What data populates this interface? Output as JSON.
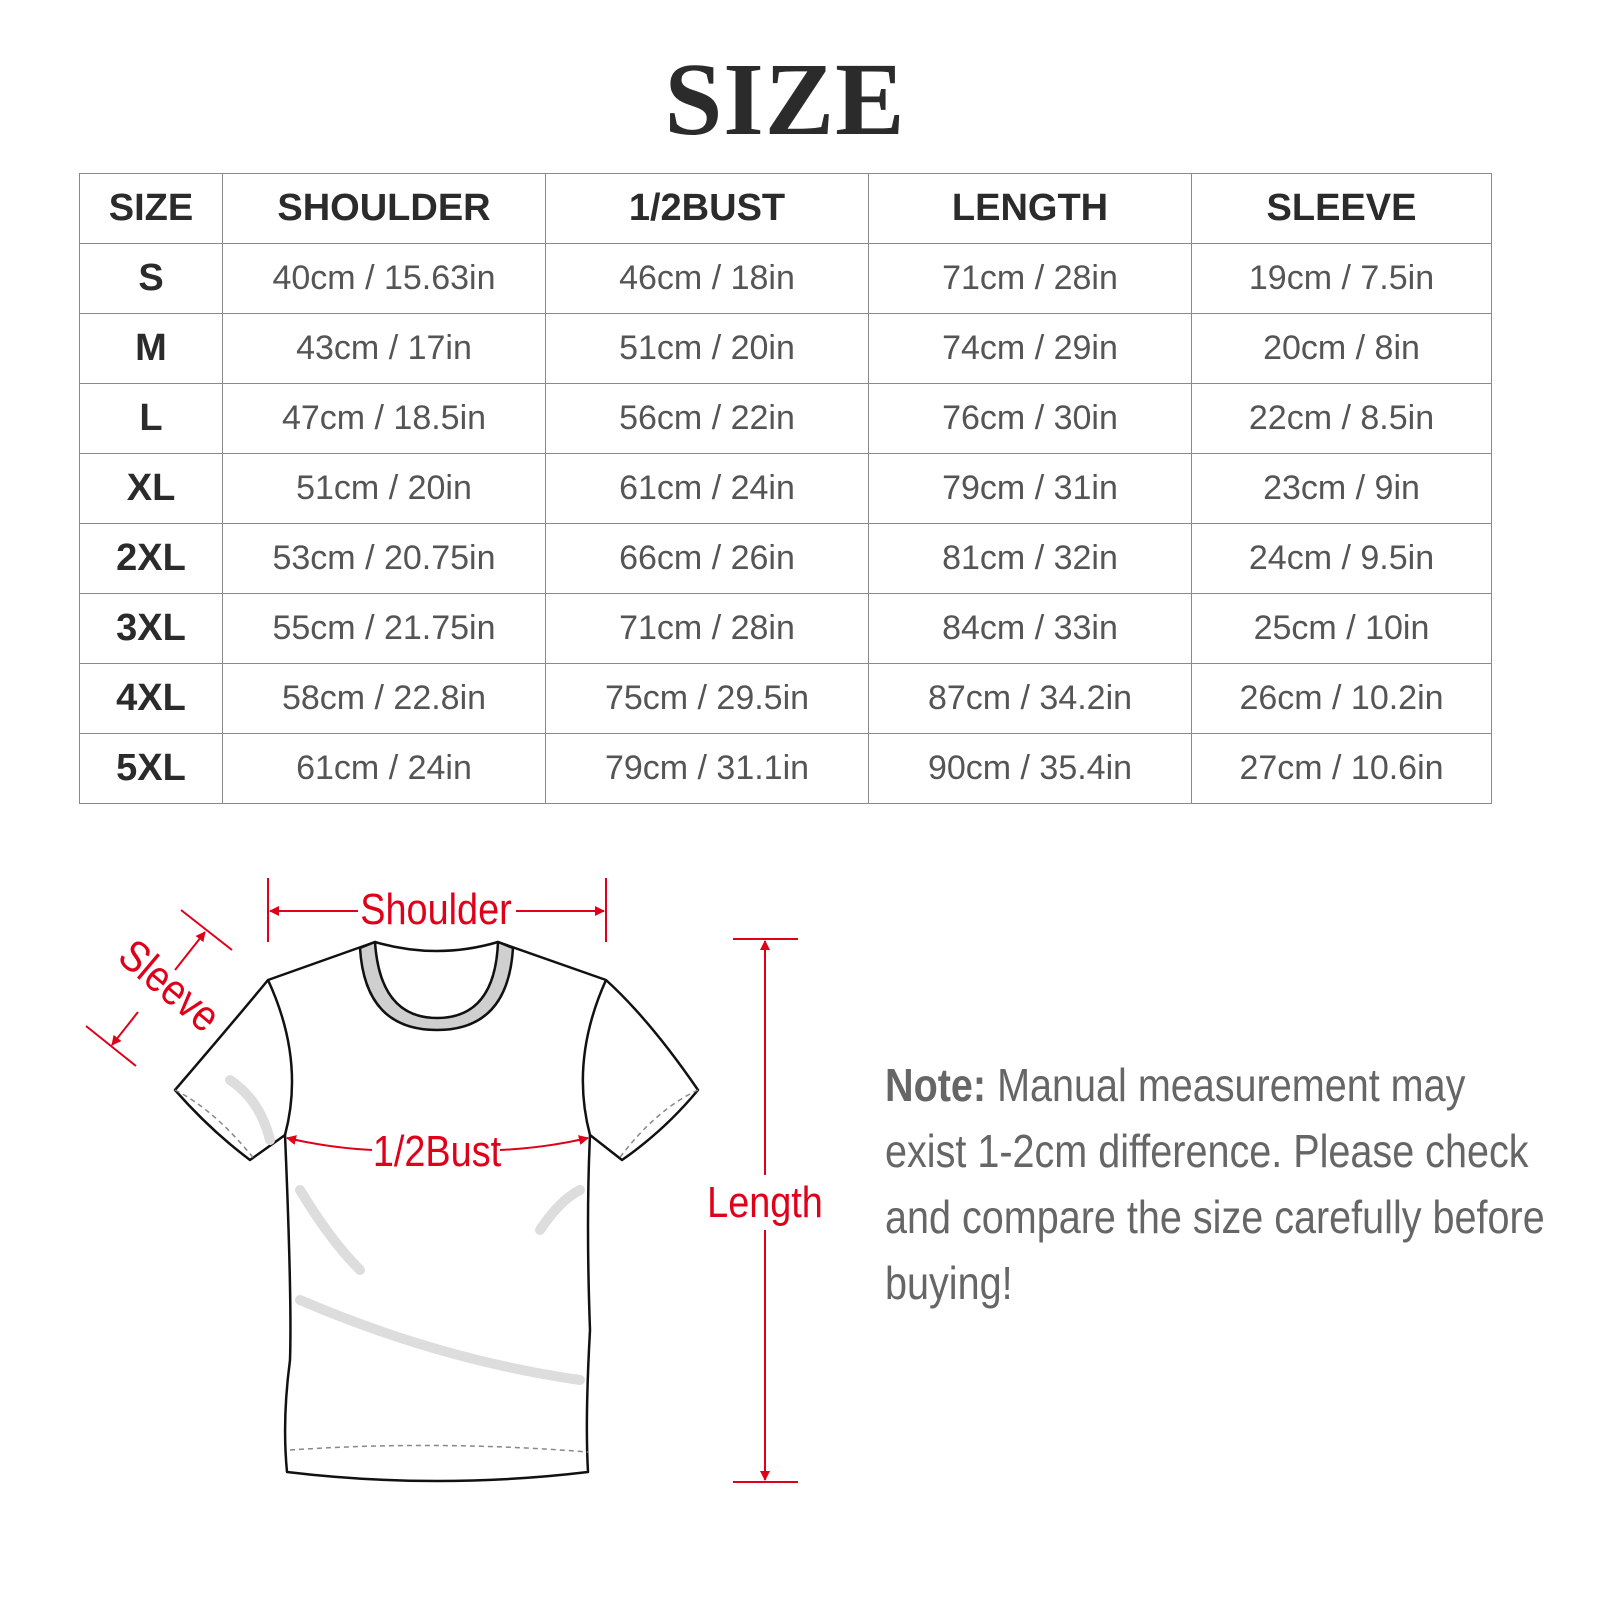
{
  "title": "SIZE",
  "table": {
    "headers": [
      "SIZE",
      "SHOULDER",
      "1/2BUST",
      "LENGTH",
      "SLEEVE"
    ],
    "rows": [
      [
        "S",
        "40cm / 15.63in",
        "46cm / 18in",
        "71cm / 28in",
        "19cm / 7.5in"
      ],
      [
        "M",
        "43cm / 17in",
        "51cm / 20in",
        "74cm / 29in",
        "20cm / 8in"
      ],
      [
        "L",
        "47cm / 18.5in",
        "56cm / 22in",
        "76cm / 30in",
        "22cm / 8.5in"
      ],
      [
        "XL",
        "51cm / 20in",
        "61cm / 24in",
        "79cm / 31in",
        "23cm / 9in"
      ],
      [
        "2XL",
        "53cm / 20.75in",
        "66cm / 26in",
        "81cm / 32in",
        "24cm / 9.5in"
      ],
      [
        "3XL",
        "55cm / 21.75in",
        "71cm / 28in",
        "84cm / 33in",
        "25cm / 10in"
      ],
      [
        "4XL",
        "58cm / 22.8in",
        "75cm / 29.5in",
        "87cm / 34.2in",
        "26cm / 10.2in"
      ],
      [
        "5XL",
        "61cm / 24in",
        "79cm / 31.1in",
        "90cm / 35.4in",
        "27cm / 10.6in"
      ]
    ]
  },
  "diagram": {
    "labels": {
      "shoulder": "Shoulder",
      "sleeve": "Sleeve",
      "bust": "1/2Bust",
      "length": "Length"
    },
    "accent_color": "#e0001a",
    "icon": "tshirt-outline"
  },
  "note": {
    "label": "Note:",
    "text": "Manual measurement may exist 1-2cm difference. Please check and compare the size carefully before buying!"
  }
}
